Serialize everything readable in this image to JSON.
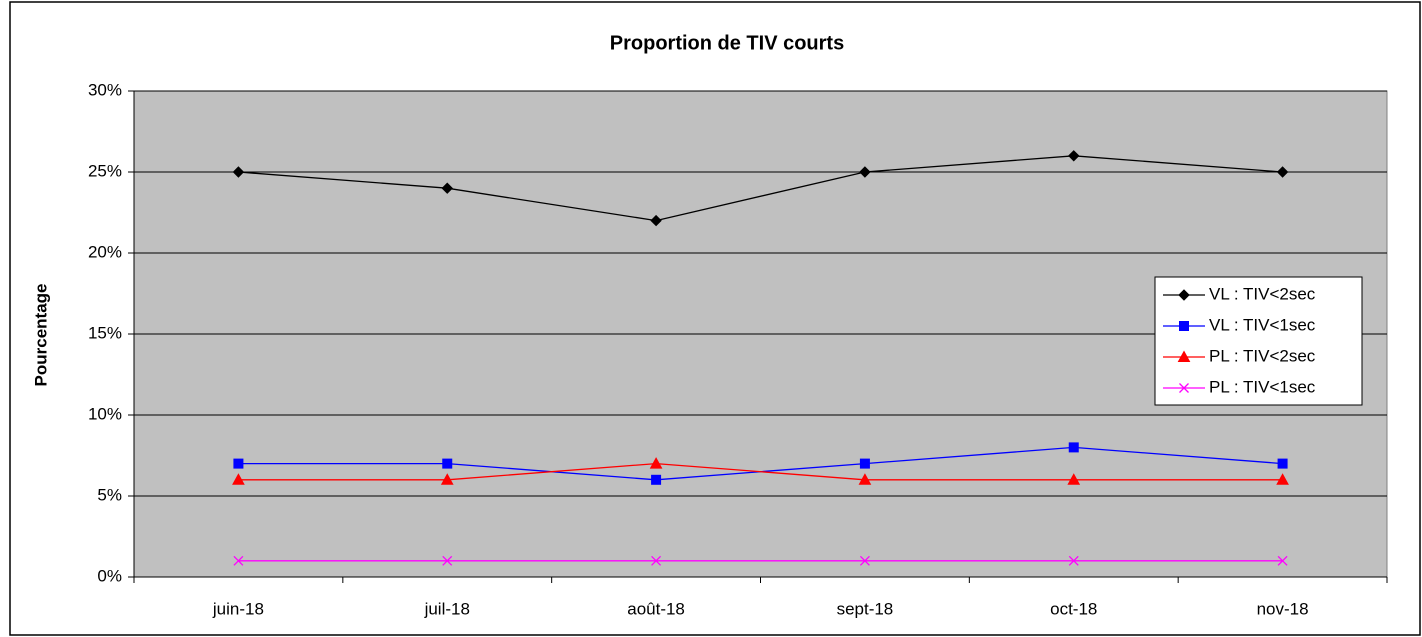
{
  "chart_data": {
    "type": "line",
    "title": "Proportion de TIV courts",
    "ylabel": "Pourcentage",
    "categories": [
      "juin-18",
      "juil-18",
      "août-18",
      "sept-18",
      "oct-18",
      "nov-18"
    ],
    "series": [
      {
        "name": "VL : TIV<2sec",
        "color": "#000000",
        "marker": "diamond",
        "values": [
          25,
          24,
          22,
          25,
          26,
          25
        ]
      },
      {
        "name": "VL : TIV<1sec",
        "color": "#0000ff",
        "marker": "square",
        "values": [
          7,
          7,
          6,
          7,
          8,
          7
        ]
      },
      {
        "name": "PL : TIV<2sec",
        "color": "#ff0000",
        "marker": "triangle",
        "values": [
          6,
          6,
          7,
          6,
          6,
          6
        ]
      },
      {
        "name": "PL : TIV<1sec",
        "color": "#ff00ff",
        "marker": "x",
        "values": [
          1,
          1,
          1,
          1,
          1,
          1
        ]
      }
    ],
    "ylim": [
      0,
      30
    ],
    "yticks": [
      {
        "value": 0,
        "label": "0%"
      },
      {
        "value": 5,
        "label": "5%"
      },
      {
        "value": 10,
        "label": "10%"
      },
      {
        "value": 15,
        "label": "15%"
      },
      {
        "value": 20,
        "label": "20%"
      },
      {
        "value": 25,
        "label": "25%"
      },
      {
        "value": 30,
        "label": "30%"
      }
    ],
    "grid": true,
    "legend": "right",
    "plot_background": "#c0c0c0"
  }
}
